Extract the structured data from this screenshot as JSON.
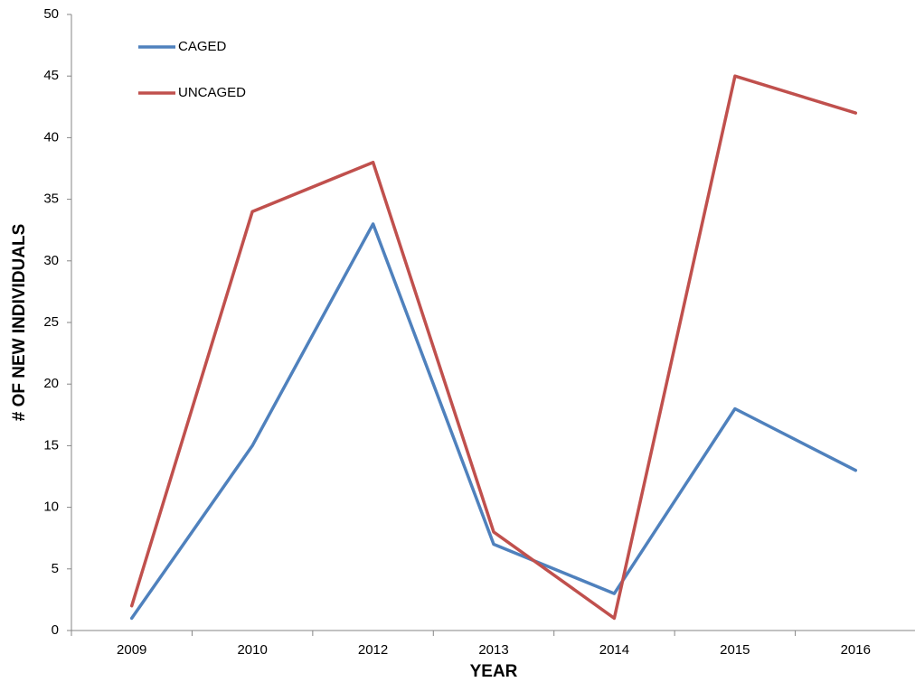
{
  "chart_data": {
    "type": "line",
    "categories": [
      "2009",
      "2010",
      "2012",
      "2013",
      "2014",
      "2015",
      "2016"
    ],
    "series": [
      {
        "name": "CAGED",
        "values": [
          1,
          15,
          33,
          7,
          3,
          18,
          13
        ],
        "color": "#4F81BD"
      },
      {
        "name": "UNCAGED",
        "values": [
          2,
          34,
          38,
          8,
          1,
          45,
          42
        ],
        "color": "#C0504D"
      }
    ],
    "title": "",
    "xlabel": "YEAR",
    "ylabel": "# OF NEW INDIVIDUALS",
    "ylim": [
      0,
      50
    ],
    "yticks": [
      0,
      5,
      10,
      15,
      20,
      25,
      30,
      35,
      40,
      45,
      50
    ],
    "grid": false,
    "legend_position": "top-left"
  }
}
